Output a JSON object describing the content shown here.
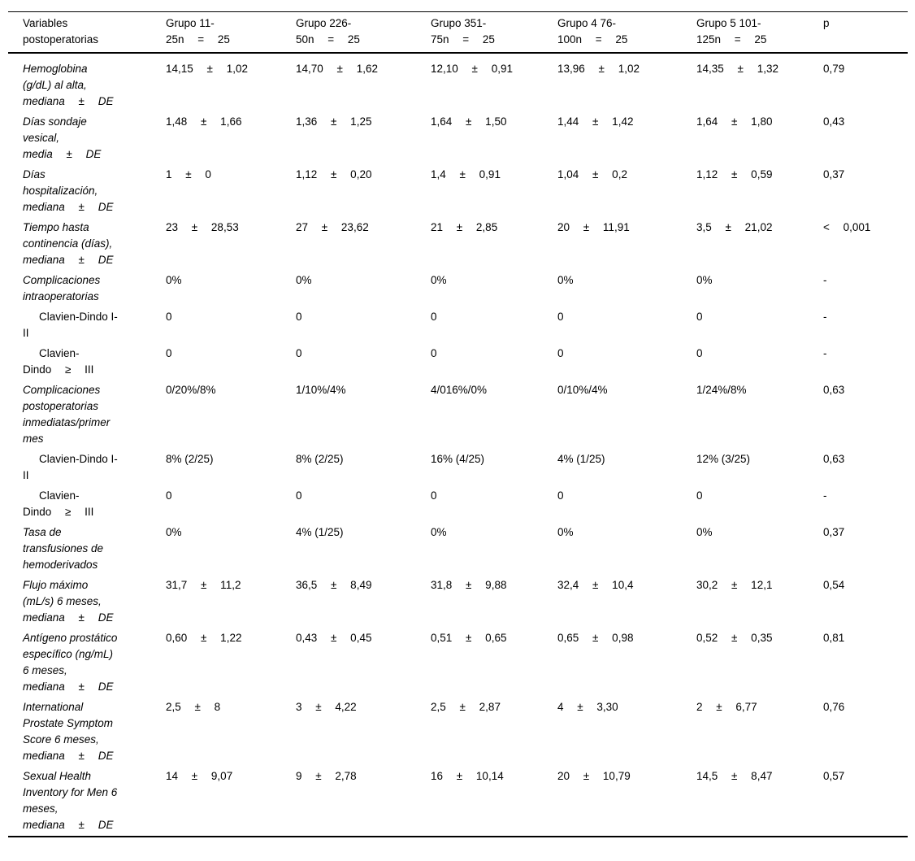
{
  "table": {
    "header": {
      "columns": [
        {
          "lines": [
            "Variables",
            "postoperatorias"
          ]
        },
        {
          "lines": [
            "Grupo 11-",
            "25n = 25"
          ]
        },
        {
          "lines": [
            "Grupo 226-",
            "50n = 25"
          ]
        },
        {
          "lines": [
            "Grupo 351-",
            "75n = 25"
          ]
        },
        {
          "lines": [
            "Grupo 4 76-",
            "100n = 25"
          ]
        },
        {
          "lines": [
            "Grupo 5 101-",
            "125n = 25"
          ]
        },
        {
          "lines": [
            "p"
          ]
        }
      ]
    },
    "rows": [
      {
        "label_lines": [
          "Hemoglobina",
          "(g/dL) al alta,",
          "mediana ± DE"
        ],
        "sub": false,
        "values": [
          "14,15 ± 1,02",
          "14,70 ± 1,62",
          "12,10 ± 0,91",
          "13,96 ± 1,02",
          "14,35 ± 1,32",
          "0,79"
        ]
      },
      {
        "label_lines": [
          "Días sondaje",
          "vesical,",
          "media ± DE"
        ],
        "sub": false,
        "values": [
          "1,48 ± 1,66",
          "1,36 ± 1,25",
          "1,64 ± 1,50",
          "1,44 ± 1,42",
          "1,64 ± 1,80",
          "0,43"
        ]
      },
      {
        "label_lines": [
          "Días",
          "hospitalización,",
          "mediana ± DE"
        ],
        "sub": false,
        "values": [
          "1 ± 0",
          "1,12 ± 0,20",
          "1,4 ± 0,91",
          "1,04 ± 0,2",
          "1,12 ± 0,59",
          "0,37"
        ]
      },
      {
        "label_lines": [
          "Tiempo hasta",
          "continencia (días),",
          "mediana ± DE"
        ],
        "sub": false,
        "values": [
          "23 ± 28,53",
          "27 ± 23,62",
          "21 ± 2,85",
          "20 ± 11,91",
          "3,5 ± 21,02",
          "< 0,001"
        ]
      },
      {
        "label_lines": [
          "Complicaciones",
          "intraoperatorias"
        ],
        "sub": false,
        "values": [
          "0%",
          "0%",
          "0%",
          "0%",
          "0%",
          "-"
        ]
      },
      {
        "label_lines": [
          "Clavien-Dindo I-",
          "II"
        ],
        "sub": true,
        "values": [
          "0",
          "0",
          "0",
          "0",
          "0",
          "-"
        ]
      },
      {
        "label_lines": [
          "Clavien-",
          "Dindo ≥ III"
        ],
        "sub": true,
        "values": [
          "0",
          "0",
          "0",
          "0",
          "0",
          "-"
        ]
      },
      {
        "label_lines": [
          "Complicaciones",
          "postoperatorias",
          "inmediatas/primer",
          "mes"
        ],
        "sub": false,
        "values": [
          "0/20%/8%",
          "1/10%/4%",
          "4/016%/0%",
          "0/10%/4%",
          "1/24%/8%",
          "0,63"
        ]
      },
      {
        "label_lines": [
          "Clavien-Dindo I-",
          "II"
        ],
        "sub": true,
        "values": [
          "8% (2/25)",
          "8% (2/25)",
          "16% (4/25)",
          "4% (1/25)",
          "12% (3/25)",
          "0,63"
        ]
      },
      {
        "label_lines": [
          "Clavien-",
          "Dindo ≥ III"
        ],
        "sub": true,
        "values": [
          "0",
          "0",
          "0",
          "0",
          "0",
          "-"
        ]
      },
      {
        "label_lines": [
          "Tasa de",
          "transfusiones de",
          "hemoderivados"
        ],
        "sub": false,
        "values": [
          "0%",
          "4% (1/25)",
          "0%",
          "0%",
          "0%",
          "0,37"
        ]
      },
      {
        "label_lines": [
          "Flujo máximo",
          "(mL/s) 6 meses,",
          "mediana ± DE"
        ],
        "sub": false,
        "values": [
          "31,7 ± 11,2",
          "36,5 ± 8,49",
          "31,8 ± 9,88",
          "32,4 ± 10,4",
          "30,2 ± 12,1",
          "0,54"
        ]
      },
      {
        "label_lines": [
          "Antígeno prostático",
          "específico (ng/mL)",
          "6 meses,",
          "mediana ± DE"
        ],
        "sub": false,
        "values": [
          "0,60 ± 1,22",
          "0,43 ± 0,45",
          "0,51 ± 0,65",
          "0,65 ± 0,98",
          "0,52 ± 0,35",
          "0,81"
        ]
      },
      {
        "label_lines": [
          "International",
          "Prostate Symptom",
          "Score 6 meses,",
          "mediana ± DE"
        ],
        "sub": false,
        "values": [
          "2,5 ± 8",
          "3 ± 4,22",
          "2,5 ± 2,87",
          "4 ± 3,30",
          "2 ± 6,77",
          "0,76"
        ]
      },
      {
        "label_lines": [
          "Sexual Health",
          "Inventory for Men 6",
          "meses,",
          "mediana ± DE"
        ],
        "sub": false,
        "values": [
          "14 ± 9,07",
          "9 ± 2,78",
          "16 ± 10,14",
          "20 ± 10,79",
          "14,5 ± 8,47",
          "0,57"
        ]
      }
    ]
  }
}
